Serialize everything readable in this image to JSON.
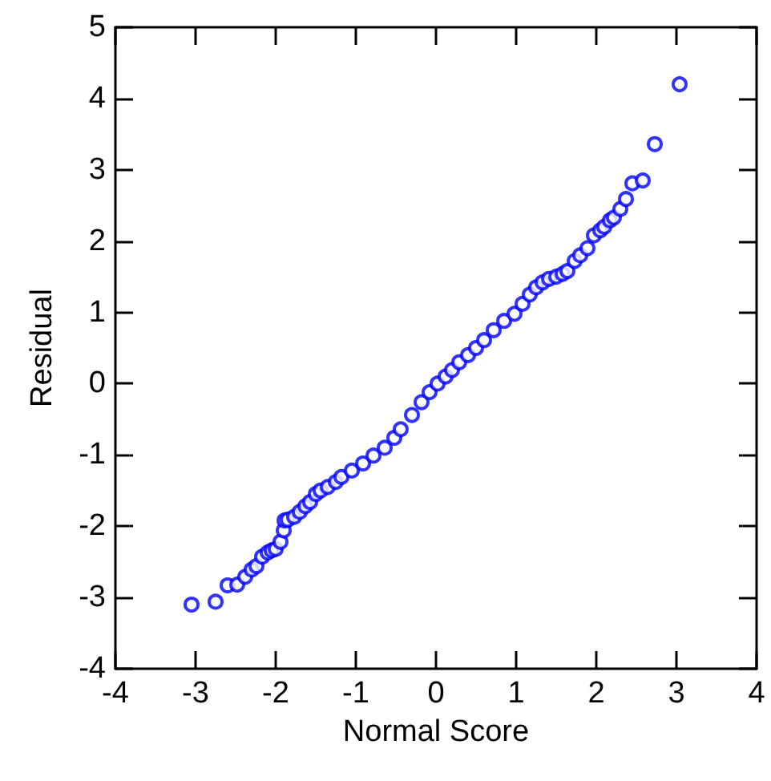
{
  "chart_data": {
    "type": "scatter",
    "xlabel": "Normal Score",
    "ylabel": "Residual",
    "xlim": [
      -4,
      4
    ],
    "xticks": [
      -4,
      -3,
      -2,
      -1,
      0,
      1,
      2,
      3,
      4
    ],
    "ylim": [
      -4,
      5
    ],
    "yticks": [
      -4,
      -3,
      -2,
      -1,
      0,
      1,
      2,
      3,
      4,
      5
    ],
    "grid": false,
    "marker": "circle",
    "series": [
      {
        "color": "#0000ff",
        "x": [
          -3.05,
          -2.75,
          -2.6,
          -2.48,
          -2.38,
          -2.3,
          -2.24,
          -2.17,
          -2.1,
          -2.05,
          -2.0,
          -1.94,
          -1.9,
          -1.89,
          -1.85,
          -1.77,
          -1.7,
          -1.63,
          -1.57,
          -1.5,
          -1.44,
          -1.35,
          -1.25,
          -1.18,
          -1.05,
          -0.91,
          -0.78,
          -0.64,
          -0.52,
          -0.44,
          -0.3,
          -0.18,
          -0.08,
          0.02,
          0.12,
          0.2,
          0.29,
          0.4,
          0.5,
          0.6,
          0.72,
          0.85,
          0.98,
          1.08,
          1.17,
          1.25,
          1.33,
          1.41,
          1.5,
          1.58,
          1.64,
          1.73,
          1.8,
          1.89,
          1.97,
          2.05,
          2.1,
          2.17,
          2.22,
          2.3,
          2.37,
          2.45,
          2.58,
          2.73,
          3.04
        ],
        "values": [
          -3.1,
          -3.06,
          -2.83,
          -2.82,
          -2.71,
          -2.61,
          -2.56,
          -2.43,
          -2.37,
          -2.34,
          -2.32,
          -2.22,
          -2.06,
          -1.92,
          -1.91,
          -1.87,
          -1.8,
          -1.72,
          -1.66,
          -1.55,
          -1.5,
          -1.45,
          -1.38,
          -1.31,
          -1.22,
          -1.12,
          -1.01,
          -0.9,
          -0.76,
          -0.64,
          -0.44,
          -0.26,
          -0.12,
          0.0,
          0.1,
          0.19,
          0.3,
          0.4,
          0.5,
          0.61,
          0.75,
          0.88,
          0.98,
          1.12,
          1.25,
          1.35,
          1.42,
          1.47,
          1.5,
          1.54,
          1.58,
          1.72,
          1.8,
          1.9,
          2.08,
          2.15,
          2.2,
          2.29,
          2.33,
          2.45,
          2.59,
          2.81,
          2.85,
          3.36,
          4.2
        ]
      }
    ]
  }
}
